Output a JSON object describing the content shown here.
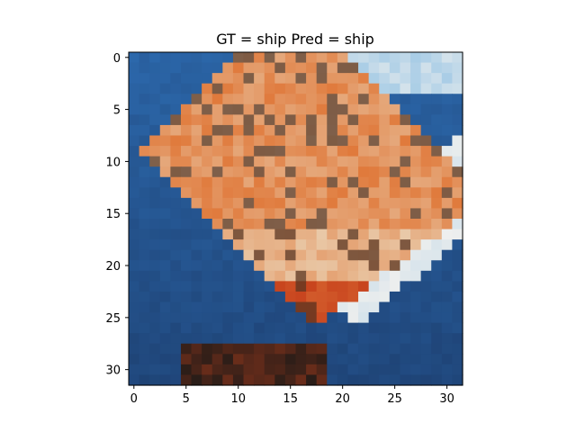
{
  "title": "GT = ship Pred = ship",
  "image": {
    "description": "32x32 CIFAR-style pixelated photo of a red-orange boat with white wake on blue sea",
    "grid": [
      32,
      32
    ],
    "palette": {
      "sea": "#2a63a4",
      "sea_dark": "#1d3f70",
      "wake": "#f0f0ee",
      "hull_red": "#c8441e",
      "deck_orange": "#e07a3c",
      "cabin_tan": "#e9c9a8",
      "shadow": "#2a1d18",
      "sky_light": "#a9cde6"
    }
  },
  "axes": {
    "x_ticks": [
      {
        "value": 0,
        "label": "0"
      },
      {
        "value": 5,
        "label": "5"
      },
      {
        "value": 10,
        "label": "10"
      },
      {
        "value": 15,
        "label": "15"
      },
      {
        "value": 20,
        "label": "20"
      },
      {
        "value": 25,
        "label": "25"
      },
      {
        "value": 30,
        "label": "30"
      }
    ],
    "y_ticks": [
      {
        "value": 0,
        "label": "0"
      },
      {
        "value": 5,
        "label": "5"
      },
      {
        "value": 10,
        "label": "10"
      },
      {
        "value": 15,
        "label": "15"
      },
      {
        "value": 20,
        "label": "20"
      },
      {
        "value": 25,
        "label": "25"
      },
      {
        "value": 30,
        "label": "30"
      }
    ]
  }
}
